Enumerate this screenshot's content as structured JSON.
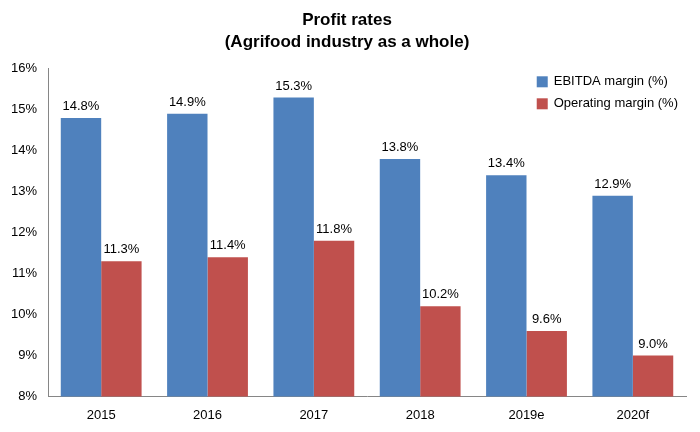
{
  "chart_data": {
    "type": "bar",
    "title": "Profit rates",
    "subtitle": "(Agrifood industry as a whole)",
    "categories": [
      "2015",
      "2016",
      "2017",
      "2018",
      "2019e",
      "2020f"
    ],
    "series": [
      {
        "name": "EBITDA margin (%)",
        "color": "#4f81bd",
        "values": [
          14.8,
          14.9,
          15.3,
          13.8,
          13.4,
          12.9
        ],
        "value_labels": [
          "14.8%",
          "14.9%",
          "15.3%",
          "13.8%",
          "13.4%",
          "12.9%"
        ]
      },
      {
        "name": "Operating margin (%)",
        "color": "#c0504d",
        "values": [
          11.3,
          11.4,
          11.8,
          10.2,
          9.6,
          9.0
        ],
        "value_labels": [
          "11.3%",
          "11.4%",
          "11.8%",
          "10.2%",
          "9.6%",
          "9.0%"
        ]
      }
    ],
    "ylim": [
      8,
      16
    ],
    "yticks": [
      {
        "value": 8,
        "label": "8%"
      },
      {
        "value": 9,
        "label": "9%"
      },
      {
        "value": 10,
        "label": "10%"
      },
      {
        "value": 11,
        "label": "11%"
      },
      {
        "value": 12,
        "label": "12%"
      },
      {
        "value": 13,
        "label": "13%"
      },
      {
        "value": 14,
        "label": "14%"
      },
      {
        "value": 15,
        "label": "15%"
      },
      {
        "value": 16,
        "label": "16%"
      }
    ],
    "grid": false,
    "legend": "upper right",
    "data_labels": true
  }
}
